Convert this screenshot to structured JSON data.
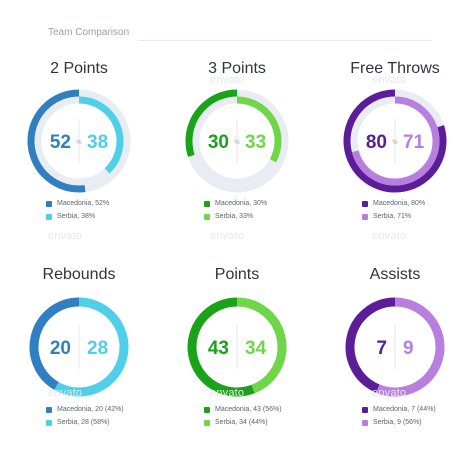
{
  "page": {
    "title": "Team Comparison",
    "watermark": "envato"
  },
  "colors": {
    "track": "#e9edf3",
    "divider": "#e3e6ea",
    "text_dark": "#2f3440",
    "legend_text": "#5d6470"
  },
  "chart_data": [
    {
      "type": "donut",
      "title": "2 Points",
      "center_left": "52",
      "center_sep": "%",
      "center_right": "38",
      "series": [
        {
          "name": "Macedonia",
          "value": 52,
          "color": "#2f7fc1"
        },
        {
          "name": "Serbia",
          "value": 38,
          "color": "#4fd0e8"
        }
      ],
      "legend": [
        "Macedonia, 52%",
        "Serbia, 38%"
      ]
    },
    {
      "type": "donut",
      "title": "3 Points",
      "center_left": "30",
      "center_sep": "%",
      "center_right": "33",
      "series": [
        {
          "name": "Macedonia",
          "value": 30,
          "color": "#1aa318"
        },
        {
          "name": "Serbia",
          "value": 33,
          "color": "#6fd64a"
        }
      ],
      "legend": [
        "Macedonia, 30%",
        "Serbia, 33%"
      ]
    },
    {
      "type": "donut",
      "title": "Free Throws",
      "center_left": "80",
      "center_sep": "%",
      "center_right": "71",
      "series": [
        {
          "name": "Macedonia",
          "value": 80,
          "color": "#5b1d98"
        },
        {
          "name": "Serbia",
          "value": 71,
          "color": "#b87fde"
        }
      ],
      "legend": [
        "Macedonia, 80%",
        "Serbia, 71%"
      ]
    },
    {
      "type": "donut",
      "title": "Rebounds",
      "center_left": "20",
      "center_sep": "",
      "center_right": "28",
      "series": [
        {
          "name": "Macedonia",
          "value": 20,
          "color": "#2f7fc1"
        },
        {
          "name": "Serbia",
          "value": 28,
          "color": "#4fd0e8"
        }
      ],
      "legend": [
        "Macedonia, 20 (42%)",
        "Serbia, 28 (58%)"
      ]
    },
    {
      "type": "donut",
      "title": "Points",
      "center_left": "43",
      "center_sep": "",
      "center_right": "34",
      "series": [
        {
          "name": "Macedonia",
          "value": 43,
          "color": "#1aa318"
        },
        {
          "name": "Serbia",
          "value": 34,
          "color": "#6fd64a"
        }
      ],
      "legend": [
        "Macedonia, 43 (56%)",
        "Serbia, 34 (44%)"
      ]
    },
    {
      "type": "donut",
      "title": "Assists",
      "center_left": "7",
      "center_sep": "",
      "center_right": "9",
      "series": [
        {
          "name": "Macedonia",
          "value": 7,
          "color": "#5b1d98"
        },
        {
          "name": "Serbia",
          "value": 9,
          "color": "#b87fde"
        }
      ],
      "legend": [
        "Macedonia, 7 (44%)",
        "Serbia, 9 (56%)"
      ]
    }
  ]
}
